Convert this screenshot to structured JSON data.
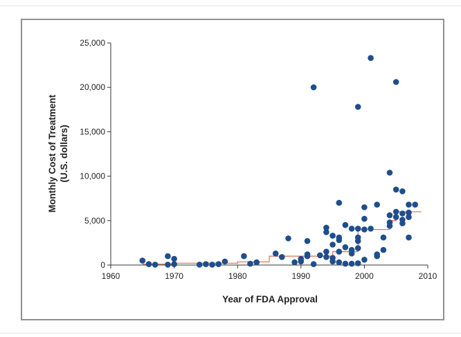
{
  "chart_data": {
    "type": "scatter",
    "title": "",
    "xlabel": "Year of FDA Approval",
    "ylabel_line1": "Monthly Cost of Treatment",
    "ylabel_line2": "(U.S. dollars)",
    "xlim": [
      1960,
      2010
    ],
    "ylim": [
      0,
      25000
    ],
    "x_ticks": [
      1960,
      1970,
      1980,
      1990,
      2000,
      2010
    ],
    "x_tick_labels": [
      "1960",
      "1970",
      "1980",
      "1990",
      "2000",
      "2010"
    ],
    "y_ticks": [
      0,
      5000,
      10000,
      15000,
      20000,
      25000
    ],
    "y_tick_labels": [
      "0",
      "5,000",
      "10,000",
      "15,000",
      "20,000",
      "25,000"
    ],
    "grid": false,
    "colors": {
      "points": "#1f4e8c",
      "median_line": "#e07a5f",
      "axis": "#333333"
    },
    "series": [
      {
        "type": "scatter",
        "points": [
          [
            1965,
            500
          ],
          [
            1966,
            100
          ],
          [
            1967,
            50
          ],
          [
            1969,
            1000
          ],
          [
            1969,
            50
          ],
          [
            1970,
            100
          ],
          [
            1970,
            700
          ],
          [
            1974,
            50
          ],
          [
            1975,
            100
          ],
          [
            1976,
            50
          ],
          [
            1977,
            100
          ],
          [
            1978,
            400
          ],
          [
            1981,
            1000
          ],
          [
            1982,
            150
          ],
          [
            1983,
            300
          ],
          [
            1986,
            1300
          ],
          [
            1987,
            900
          ],
          [
            1988,
            3000
          ],
          [
            1989,
            300
          ],
          [
            1990,
            400
          ],
          [
            1990,
            700
          ],
          [
            1991,
            2700
          ],
          [
            1991,
            1000
          ],
          [
            1991,
            1200
          ],
          [
            1992,
            20000
          ],
          [
            1992,
            100
          ],
          [
            1993,
            1100
          ],
          [
            1994,
            3700
          ],
          [
            1994,
            4200
          ],
          [
            1994,
            1500
          ],
          [
            1994,
            900
          ],
          [
            1995,
            3300
          ],
          [
            1995,
            2300
          ],
          [
            1995,
            400
          ],
          [
            1995,
            800
          ],
          [
            1996,
            7000
          ],
          [
            1996,
            3100
          ],
          [
            1996,
            2800
          ],
          [
            1996,
            300
          ],
          [
            1996,
            1500
          ],
          [
            1997,
            4500
          ],
          [
            1997,
            150
          ],
          [
            1997,
            2000
          ],
          [
            1998,
            4100
          ],
          [
            1998,
            1300
          ],
          [
            1998,
            150
          ],
          [
            1998,
            1700
          ],
          [
            1999,
            17800
          ],
          [
            1999,
            4100
          ],
          [
            1999,
            3100
          ],
          [
            1999,
            2700
          ],
          [
            1999,
            1900
          ],
          [
            1999,
            200
          ],
          [
            2000,
            6500
          ],
          [
            2000,
            5200
          ],
          [
            2000,
            600
          ],
          [
            2000,
            4000
          ],
          [
            2001,
            23300
          ],
          [
            2001,
            4100
          ],
          [
            2002,
            6800
          ],
          [
            2002,
            1200
          ],
          [
            2002,
            1000
          ],
          [
            2003,
            3100
          ],
          [
            2003,
            1700
          ],
          [
            2004,
            10400
          ],
          [
            2004,
            5600
          ],
          [
            2004,
            4800
          ],
          [
            2004,
            4400
          ],
          [
            2005,
            20600
          ],
          [
            2005,
            8500
          ],
          [
            2005,
            6000
          ],
          [
            2005,
            5400
          ],
          [
            2006,
            8300
          ],
          [
            2006,
            5800
          ],
          [
            2006,
            4700
          ],
          [
            2006,
            5100
          ],
          [
            2007,
            6800
          ],
          [
            2007,
            5900
          ],
          [
            2007,
            5400
          ],
          [
            2007,
            3100
          ],
          [
            2008,
            6800
          ]
        ]
      },
      {
        "type": "step",
        "points": [
          [
            1965,
            100
          ],
          [
            1970,
            100
          ],
          [
            1970,
            200
          ],
          [
            1980,
            200
          ],
          [
            1980,
            350
          ],
          [
            1985,
            350
          ],
          [
            1985,
            1000
          ],
          [
            1995,
            1000
          ],
          [
            1995,
            1500
          ],
          [
            1999,
            1500
          ],
          [
            1999,
            4000
          ],
          [
            2004,
            4000
          ],
          [
            2004,
            5000
          ],
          [
            2005,
            5000
          ],
          [
            2005,
            6000
          ],
          [
            2009,
            6000
          ]
        ]
      }
    ]
  }
}
